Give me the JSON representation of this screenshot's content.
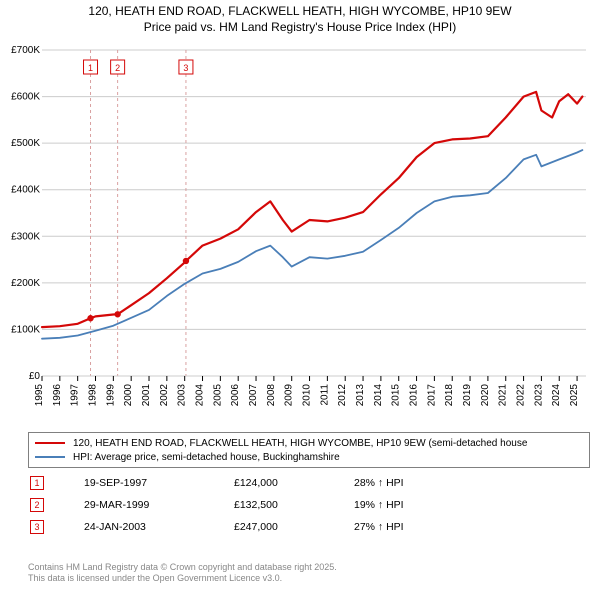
{
  "title_line1": "120, HEATH END ROAD, FLACKWELL HEATH, HIGH WYCOMBE, HP10 9EW",
  "title_line2": "Price paid vs. HM Land Registry's House Price Index (HPI)",
  "chart": {
    "type": "line",
    "background_color": "#ffffff",
    "grid_color": "#cccccc",
    "axis_color": "#000000",
    "x": {
      "min": 1995,
      "max": 2025.5,
      "ticks": [
        1995,
        1996,
        1997,
        1998,
        1999,
        2000,
        2001,
        2002,
        2003,
        2004,
        2005,
        2006,
        2007,
        2008,
        2009,
        2010,
        2011,
        2012,
        2013,
        2014,
        2015,
        2016,
        2017,
        2018,
        2019,
        2020,
        2021,
        2022,
        2023,
        2024,
        2025
      ]
    },
    "y": {
      "min": 0,
      "max": 700000,
      "ticks": [
        0,
        100000,
        200000,
        300000,
        400000,
        500000,
        600000,
        700000
      ],
      "tick_labels": [
        "£0",
        "£100K",
        "£200K",
        "£300K",
        "£400K",
        "£500K",
        "£600K",
        "£700K"
      ]
    },
    "series": [
      {
        "name": "property",
        "color": "#d40808",
        "width": 2.2,
        "label": "120, HEATH END ROAD, FLACKWELL HEATH, HIGH WYCOMBE, HP10 9EW (semi-detached house",
        "points": [
          [
            1995,
            105000
          ],
          [
            1996,
            107000
          ],
          [
            1997,
            112000
          ],
          [
            1997.72,
            124000
          ],
          [
            1998,
            128000
          ],
          [
            1999,
            132000
          ],
          [
            1999.24,
            132500
          ],
          [
            2000,
            152000
          ],
          [
            2001,
            178000
          ],
          [
            2002,
            210000
          ],
          [
            2003,
            244000
          ],
          [
            2003.07,
            247000
          ],
          [
            2004,
            280000
          ],
          [
            2005,
            295000
          ],
          [
            2006,
            315000
          ],
          [
            2007,
            352000
          ],
          [
            2007.8,
            375000
          ],
          [
            2008.5,
            335000
          ],
          [
            2009,
            310000
          ],
          [
            2010,
            335000
          ],
          [
            2011,
            332000
          ],
          [
            2012,
            340000
          ],
          [
            2013,
            352000
          ],
          [
            2014,
            390000
          ],
          [
            2015,
            425000
          ],
          [
            2016,
            470000
          ],
          [
            2017,
            500000
          ],
          [
            2018,
            508000
          ],
          [
            2019,
            510000
          ],
          [
            2020,
            515000
          ],
          [
            2021,
            555000
          ],
          [
            2022,
            600000
          ],
          [
            2022.7,
            610000
          ],
          [
            2023,
            570000
          ],
          [
            2023.6,
            555000
          ],
          [
            2024,
            590000
          ],
          [
            2024.5,
            605000
          ],
          [
            2025,
            585000
          ],
          [
            2025.3,
            600000
          ]
        ]
      },
      {
        "name": "hpi",
        "color": "#4a7fb8",
        "width": 1.8,
        "label": "HPI: Average price, semi-detached house, Buckinghamshire",
        "points": [
          [
            1995,
            80000
          ],
          [
            1996,
            82000
          ],
          [
            1997,
            87000
          ],
          [
            1998,
            97000
          ],
          [
            1999,
            108000
          ],
          [
            2000,
            125000
          ],
          [
            2001,
            142000
          ],
          [
            2002,
            172000
          ],
          [
            2003,
            198000
          ],
          [
            2004,
            220000
          ],
          [
            2005,
            230000
          ],
          [
            2006,
            245000
          ],
          [
            2007,
            268000
          ],
          [
            2007.8,
            280000
          ],
          [
            2008.5,
            255000
          ],
          [
            2009,
            235000
          ],
          [
            2010,
            255000
          ],
          [
            2011,
            252000
          ],
          [
            2012,
            258000
          ],
          [
            2013,
            267000
          ],
          [
            2014,
            292000
          ],
          [
            2015,
            318000
          ],
          [
            2016,
            350000
          ],
          [
            2017,
            375000
          ],
          [
            2018,
            385000
          ],
          [
            2019,
            388000
          ],
          [
            2020,
            393000
          ],
          [
            2021,
            425000
          ],
          [
            2022,
            465000
          ],
          [
            2022.7,
            475000
          ],
          [
            2023,
            450000
          ],
          [
            2024,
            465000
          ],
          [
            2025,
            480000
          ],
          [
            2025.3,
            485000
          ]
        ]
      }
    ],
    "sale_markers": [
      {
        "id": "1",
        "x": 1997.72,
        "y": 124000,
        "color": "#d40808"
      },
      {
        "id": "2",
        "x": 1999.24,
        "y": 132500,
        "color": "#d40808"
      },
      {
        "id": "3",
        "x": 2003.07,
        "y": 247000,
        "color": "#d40808"
      }
    ],
    "marker_line_color": "#d9a0a0",
    "marker_box_fill": "#ffffff"
  },
  "legend": {
    "items": [
      {
        "color": "#d40808",
        "label": "120, HEATH END ROAD, FLACKWELL HEATH, HIGH WYCOMBE, HP10 9EW (semi-detached house"
      },
      {
        "color": "#4a7fb8",
        "label": "HPI: Average price, semi-detached house, Buckinghamshire"
      }
    ]
  },
  "sales_table": {
    "marker_border": "#d40808",
    "marker_text": "#d40808",
    "rows": [
      {
        "id": "1",
        "date": "19-SEP-1997",
        "price": "£124,000",
        "diff": "28% ↑ HPI"
      },
      {
        "id": "2",
        "date": "29-MAR-1999",
        "price": "£132,500",
        "diff": "19% ↑ HPI"
      },
      {
        "id": "3",
        "date": "24-JAN-2003",
        "price": "£247,000",
        "diff": "27% ↑ HPI"
      }
    ]
  },
  "footer_line1": "Contains HM Land Registry data © Crown copyright and database right 2025.",
  "footer_line2": "This data is licensed under the Open Government Licence v3.0."
}
